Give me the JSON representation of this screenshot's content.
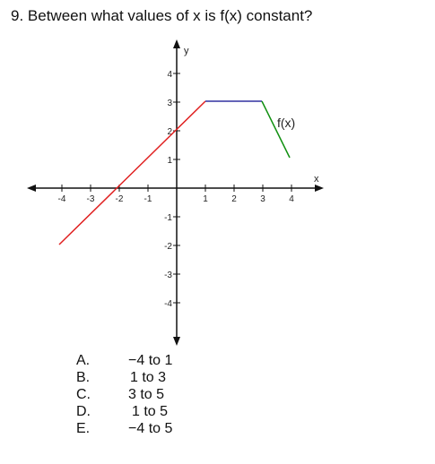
{
  "question": "9. Between what values of x is f(x) constant?",
  "graph": {
    "x_axis_name": "x",
    "y_axis_name": "y",
    "function_label": "f(x)",
    "x_tick_labels": [
      "-4",
      "-3",
      "-2",
      "-1",
      "1",
      "2",
      "3",
      "4"
    ],
    "y_tick_labels": [
      "4",
      "3",
      "2",
      "1",
      "-1",
      "-2",
      "-3",
      "-4"
    ],
    "colors": {
      "rising": "#e02020",
      "constant": "#3030a0",
      "falling": "#109010"
    }
  },
  "choices": [
    {
      "letter": "A.",
      "text": "−4 to 1"
    },
    {
      "letter": "B.",
      "text": "1 to 3"
    },
    {
      "letter": "C.",
      "text": "3 to 5"
    },
    {
      "letter": "D.",
      "text": "1 to 5"
    },
    {
      "letter": "E.",
      "text": "−4 to 5"
    }
  ]
}
